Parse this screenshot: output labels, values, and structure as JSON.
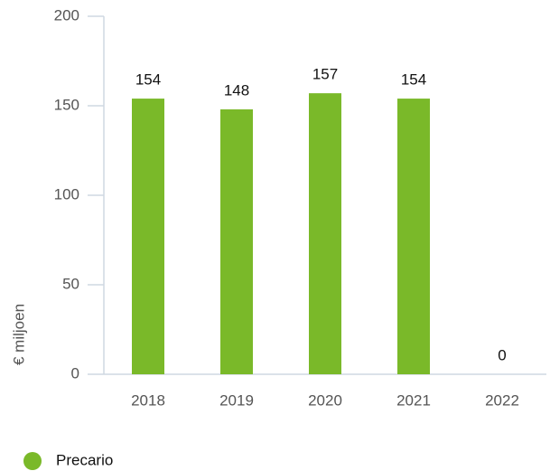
{
  "chart_data": {
    "type": "bar",
    "y_label": "€ miljoen",
    "categories": [
      "2018",
      "2019",
      "2020",
      "2021",
      "2022"
    ],
    "series": [
      {
        "name": "Precario",
        "color": "#7ab929",
        "values": [
          154,
          148,
          157,
          154,
          0
        ]
      }
    ],
    "ylim": [
      0,
      200
    ],
    "yticks": [
      0,
      50,
      100,
      150,
      200
    ],
    "grid": false,
    "legend": "bottom-left"
  }
}
